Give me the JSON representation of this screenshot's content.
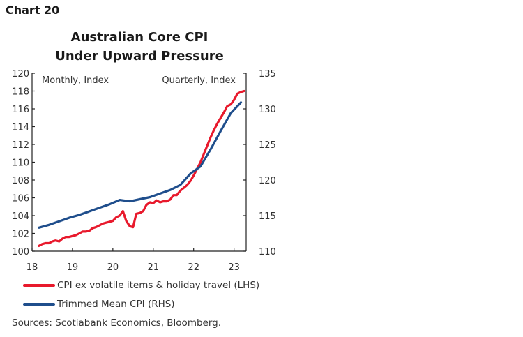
{
  "chart_label": "Chart 20",
  "chart_data": {
    "type": "line",
    "title": [
      "Australian Core CPI",
      "Under Upward Pressure"
    ],
    "left_axis_label": "Monthly, Index",
    "right_axis_label": "Quarterly, Index",
    "xlim": [
      18,
      23.3
    ],
    "x_ticks": [
      "18",
      "19",
      "20",
      "21",
      "22",
      "23"
    ],
    "ylim_left": [
      100,
      120
    ],
    "y_ticks_left": [
      "100",
      "102",
      "104",
      "106",
      "108",
      "110",
      "112",
      "114",
      "116",
      "118",
      "120"
    ],
    "ylim_right": [
      110,
      135
    ],
    "y_ticks_right": [
      "110",
      "115",
      "120",
      "125",
      "130",
      "135"
    ],
    "grid": false,
    "legend_placement": "bottom",
    "series": [
      {
        "name": "CPI ex volatile items & holiday travel (LHS)",
        "axis": "left",
        "color": "#e8192c",
        "x": [
          18.17,
          18.25,
          18.33,
          18.42,
          18.5,
          18.58,
          18.67,
          18.75,
          18.83,
          18.92,
          19.0,
          19.08,
          19.17,
          19.25,
          19.33,
          19.42,
          19.5,
          19.58,
          19.67,
          19.75,
          19.83,
          19.92,
          20.0,
          20.08,
          20.17,
          20.25,
          20.33,
          20.42,
          20.5,
          20.58,
          20.67,
          20.75,
          20.83,
          20.92,
          21.0,
          21.08,
          21.17,
          21.25,
          21.33,
          21.42,
          21.5,
          21.58,
          21.67,
          21.75,
          21.83,
          21.92,
          22.0,
          22.08,
          22.17,
          22.25,
          22.33,
          22.42,
          22.5,
          22.58,
          22.67,
          22.75,
          22.83,
          22.92,
          23.0,
          23.08,
          23.17,
          23.25
        ],
        "values": [
          100.6,
          100.8,
          100.9,
          100.9,
          101.1,
          101.2,
          101.1,
          101.4,
          101.6,
          101.6,
          101.7,
          101.8,
          102.0,
          102.2,
          102.2,
          102.3,
          102.6,
          102.7,
          102.9,
          103.1,
          103.2,
          103.3,
          103.4,
          103.8,
          104.0,
          104.5,
          103.4,
          102.8,
          102.7,
          104.2,
          104.3,
          104.5,
          105.2,
          105.5,
          105.4,
          105.7,
          105.5,
          105.6,
          105.6,
          105.8,
          106.3,
          106.3,
          106.8,
          107.1,
          107.4,
          107.9,
          108.5,
          109.2,
          110.0,
          110.9,
          111.8,
          112.8,
          113.6,
          114.3,
          115.0,
          115.6,
          116.3,
          116.5,
          117.0,
          117.7,
          117.9,
          118.0
        ]
      },
      {
        "name": "Trimmed Mean CPI (RHS)",
        "axis": "right",
        "color": "#1f4e8c",
        "x": [
          18.17,
          18.42,
          18.67,
          18.92,
          19.17,
          19.42,
          19.67,
          19.92,
          20.17,
          20.42,
          20.67,
          20.92,
          21.17,
          21.42,
          21.67,
          21.92,
          22.17,
          22.42,
          22.67,
          22.92,
          23.17
        ],
        "values": [
          113.3,
          113.7,
          114.2,
          114.7,
          115.1,
          115.6,
          116.1,
          116.6,
          117.2,
          117.0,
          117.3,
          117.6,
          118.1,
          118.6,
          119.3,
          120.9,
          121.9,
          124.3,
          126.9,
          129.4,
          130.9
        ]
      }
    ]
  },
  "sources": "Sources: Scotiabank Economics, Bloomberg."
}
